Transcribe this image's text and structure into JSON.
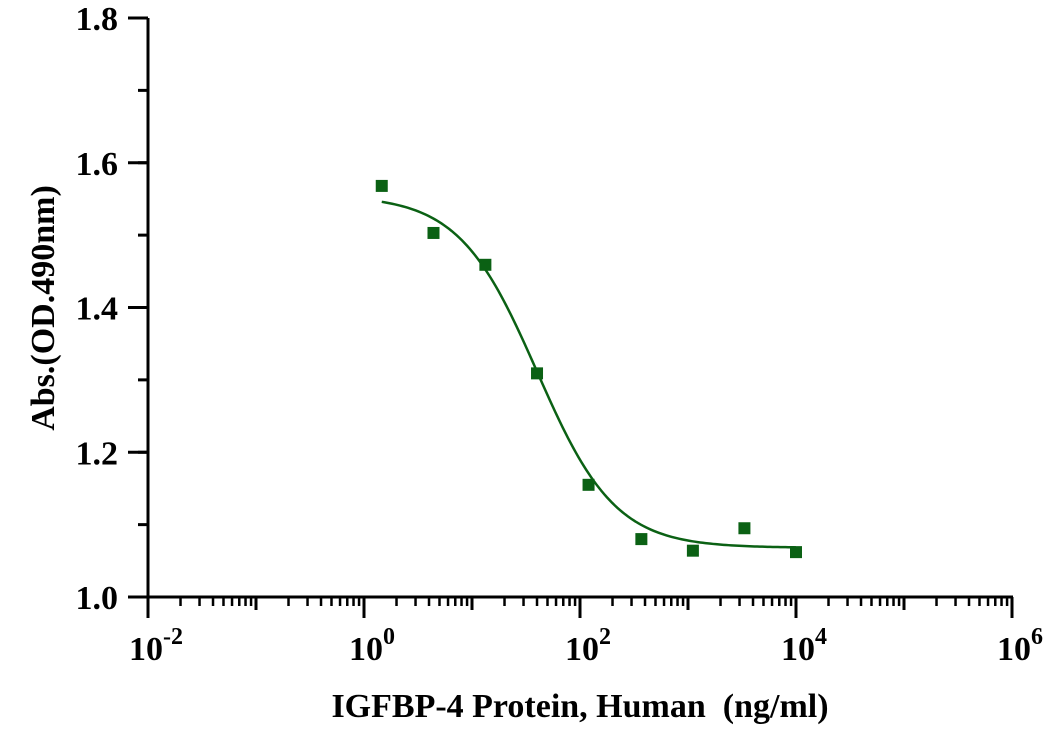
{
  "chart_data": {
    "type": "scatter",
    "xlabel": "IGFBP-4 Protein, Human  (ng/ml)",
    "ylabel": "Abs.(OD.490nm)",
    "xscale": "log",
    "xlim": [
      0.01,
      1000000
    ],
    "ylim": [
      1.0,
      1.8
    ],
    "x_ticks": [
      {
        "base": "10",
        "exp": "-2"
      },
      {
        "base": "10",
        "exp": "0"
      },
      {
        "base": "10",
        "exp": "2"
      },
      {
        "base": "10",
        "exp": "4"
      },
      {
        "base": "10",
        "exp": "6"
      }
    ],
    "y_ticks": [
      "1.0",
      "1.2",
      "1.4",
      "1.6",
      "1.8"
    ],
    "grid": false,
    "color": "#0b6114",
    "series": [
      {
        "x": [
          1.46,
          4.4,
          13.3,
          40,
          120,
          370,
          1110,
          3330,
          10000
        ],
        "y": [
          1.568,
          1.503,
          1.459,
          1.309,
          1.155,
          1.08,
          1.064,
          1.095,
          1.062
        ],
        "fit_curve": true
      }
    ]
  }
}
